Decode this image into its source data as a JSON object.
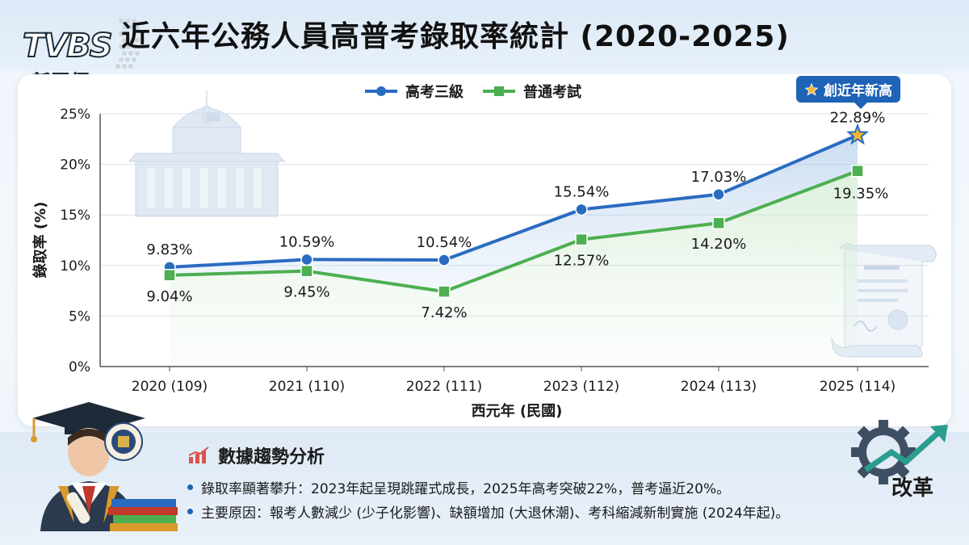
{
  "header": {
    "title": "近六年公務人員高普考錄取率統計 (2020-2025)",
    "logo_text": "TVBS",
    "logo_subtext": "新聞網"
  },
  "badge": {
    "label": "創近年新高",
    "icon": "star-icon"
  },
  "chart_data": {
    "type": "line",
    "categories": [
      "2020 (109)",
      "2021 (110)",
      "2022 (111)",
      "2023 (112)",
      "2024 (113)",
      "2025 (114)"
    ],
    "series": [
      {
        "name": "高考三級",
        "values": [
          9.83,
          10.59,
          10.54,
          15.54,
          17.03,
          22.89
        ],
        "labels": [
          "9.83%",
          "10.59%",
          "10.54%",
          "15.54%",
          "17.03%",
          "22.89%"
        ],
        "color": "#2a6bc2",
        "marker": "circle"
      },
      {
        "name": "普通考試",
        "values": [
          9.04,
          9.45,
          7.42,
          12.57,
          14.2,
          19.35
        ],
        "labels": [
          "9.04%",
          "9.45%",
          "7.42%",
          "12.57%",
          "14.20%",
          "19.35%"
        ],
        "color": "#4caf50",
        "marker": "square"
      }
    ],
    "xlabel": "西元年 (民國)",
    "ylabel": "錄取率 (%)",
    "ylim": [
      0,
      25
    ],
    "yticks": [
      "0%",
      "5%",
      "10%",
      "15%",
      "20%",
      "25%"
    ],
    "ytick_values": [
      0,
      5,
      10,
      15,
      20,
      25
    ],
    "grid": true,
    "legend_position": "top-center"
  },
  "analysis": {
    "title": "數據趨勢分析",
    "bullets": [
      "錄取率顯著攀升：2023年起呈現跳躍式成長，2025年高考突破22%，普考逼近20%。",
      "主要原因：報考人數減少 (少子化影響)、缺額增加 (大退休潮)、考科縮減新制實施 (2024年起)。"
    ]
  },
  "reform": {
    "label": "改革"
  }
}
